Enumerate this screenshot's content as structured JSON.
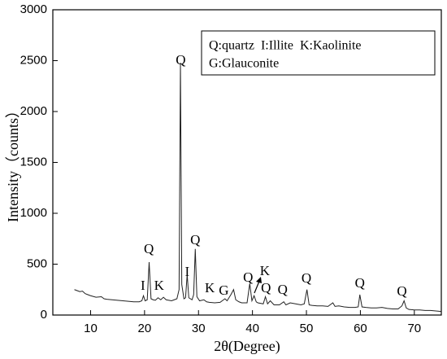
{
  "chart_data": {
    "type": "line",
    "xlabel": "2θ(Degree)",
    "ylabel": "Intensity（counts）",
    "legend_text": [
      "Q:quartz  I:Illite  K:Kaolinite",
      "G:Glauconite"
    ],
    "xlim": [
      3,
      75
    ],
    "ylim": [
      0,
      3000
    ],
    "xticks": [
      10,
      20,
      30,
      40,
      50,
      60,
      70
    ],
    "yticks": [
      0,
      500,
      1000,
      1500,
      2000,
      2500,
      3000
    ],
    "series": [
      {
        "color": "#222222",
        "x": [
          7,
          7.5,
          8,
          8.5,
          9,
          9.5,
          10,
          11,
          12,
          12.5,
          13,
          14,
          15,
          16,
          17,
          18,
          19,
          19.5,
          19.8,
          20.1,
          20.5,
          20.85,
          21.2,
          21.6,
          22,
          22.5,
          23,
          23.5,
          24,
          24.5,
          25,
          25.5,
          26,
          26.4,
          26.65,
          26.9,
          27.3,
          27.6,
          27.9,
          28.2,
          28.8,
          29.1,
          29.4,
          29.7,
          30.2,
          31,
          31.5,
          32,
          33,
          34,
          34.9,
          35.3,
          36,
          36.5,
          36.9,
          37.5,
          38,
          39,
          39.5,
          39.9,
          40.3,
          40.7,
          41,
          42,
          42.4,
          42.8,
          43.3,
          44,
          45,
          45.8,
          46.2,
          47,
          48,
          49,
          49.6,
          50.1,
          50.5,
          51,
          52,
          53,
          54,
          54.9,
          55.3,
          56,
          57,
          58,
          59,
          59.6,
          59.9,
          60.3,
          61,
          62,
          63,
          64,
          65,
          66,
          67,
          67.7,
          68.1,
          68.5,
          69,
          70,
          71,
          72,
          73,
          74,
          75
        ],
        "values": [
          250,
          240,
          230,
          235,
          210,
          200,
          190,
          175,
          180,
          160,
          155,
          150,
          145,
          140,
          135,
          130,
          130,
          140,
          190,
          140,
          150,
          520,
          160,
          150,
          145,
          170,
          150,
          175,
          150,
          145,
          140,
          150,
          160,
          250,
          2480,
          300,
          160,
          170,
          400,
          170,
          150,
          200,
          650,
          180,
          140,
          150,
          130,
          125,
          120,
          125,
          160,
          140,
          200,
          250,
          150,
          130,
          120,
          120,
          310,
          140,
          190,
          130,
          120,
          110,
          180,
          110,
          140,
          100,
          100,
          130,
          100,
          120,
          110,
          100,
          110,
          250,
          100,
          95,
          90,
          90,
          85,
          120,
          85,
          90,
          80,
          75,
          75,
          80,
          200,
          80,
          75,
          70,
          70,
          75,
          65,
          60,
          60,
          90,
          140,
          70,
          55,
          50,
          50,
          45,
          45,
          40,
          35
        ]
      }
    ],
    "annotations": [
      {
        "text": "I",
        "x": 19.7,
        "y": 280
      },
      {
        "text": "Q",
        "x": 20.8,
        "y": 640
      },
      {
        "text": "K",
        "x": 22.7,
        "y": 280
      },
      {
        "text": "Q",
        "x": 26.7,
        "y": 2496
      },
      {
        "text": "I",
        "x": 27.9,
        "y": 416
      },
      {
        "text": "Q",
        "x": 29.4,
        "y": 728
      },
      {
        "text": "K",
        "x": 32.1,
        "y": 256
      },
      {
        "text": "G",
        "x": 34.7,
        "y": 232
      },
      {
        "text": "Q",
        "x": 39.2,
        "y": 360
      },
      {
        "text": "K",
        "x": 42.3,
        "y": 424
      },
      {
        "text": "Q",
        "x": 42.5,
        "y": 256
      },
      {
        "text": "Q",
        "x": 45.6,
        "y": 240
      },
      {
        "text": "Q",
        "x": 50,
        "y": 352
      },
      {
        "text": "Q",
        "x": 59.9,
        "y": 304
      },
      {
        "text": "Q",
        "x": 67.7,
        "y": 224
      }
    ]
  }
}
